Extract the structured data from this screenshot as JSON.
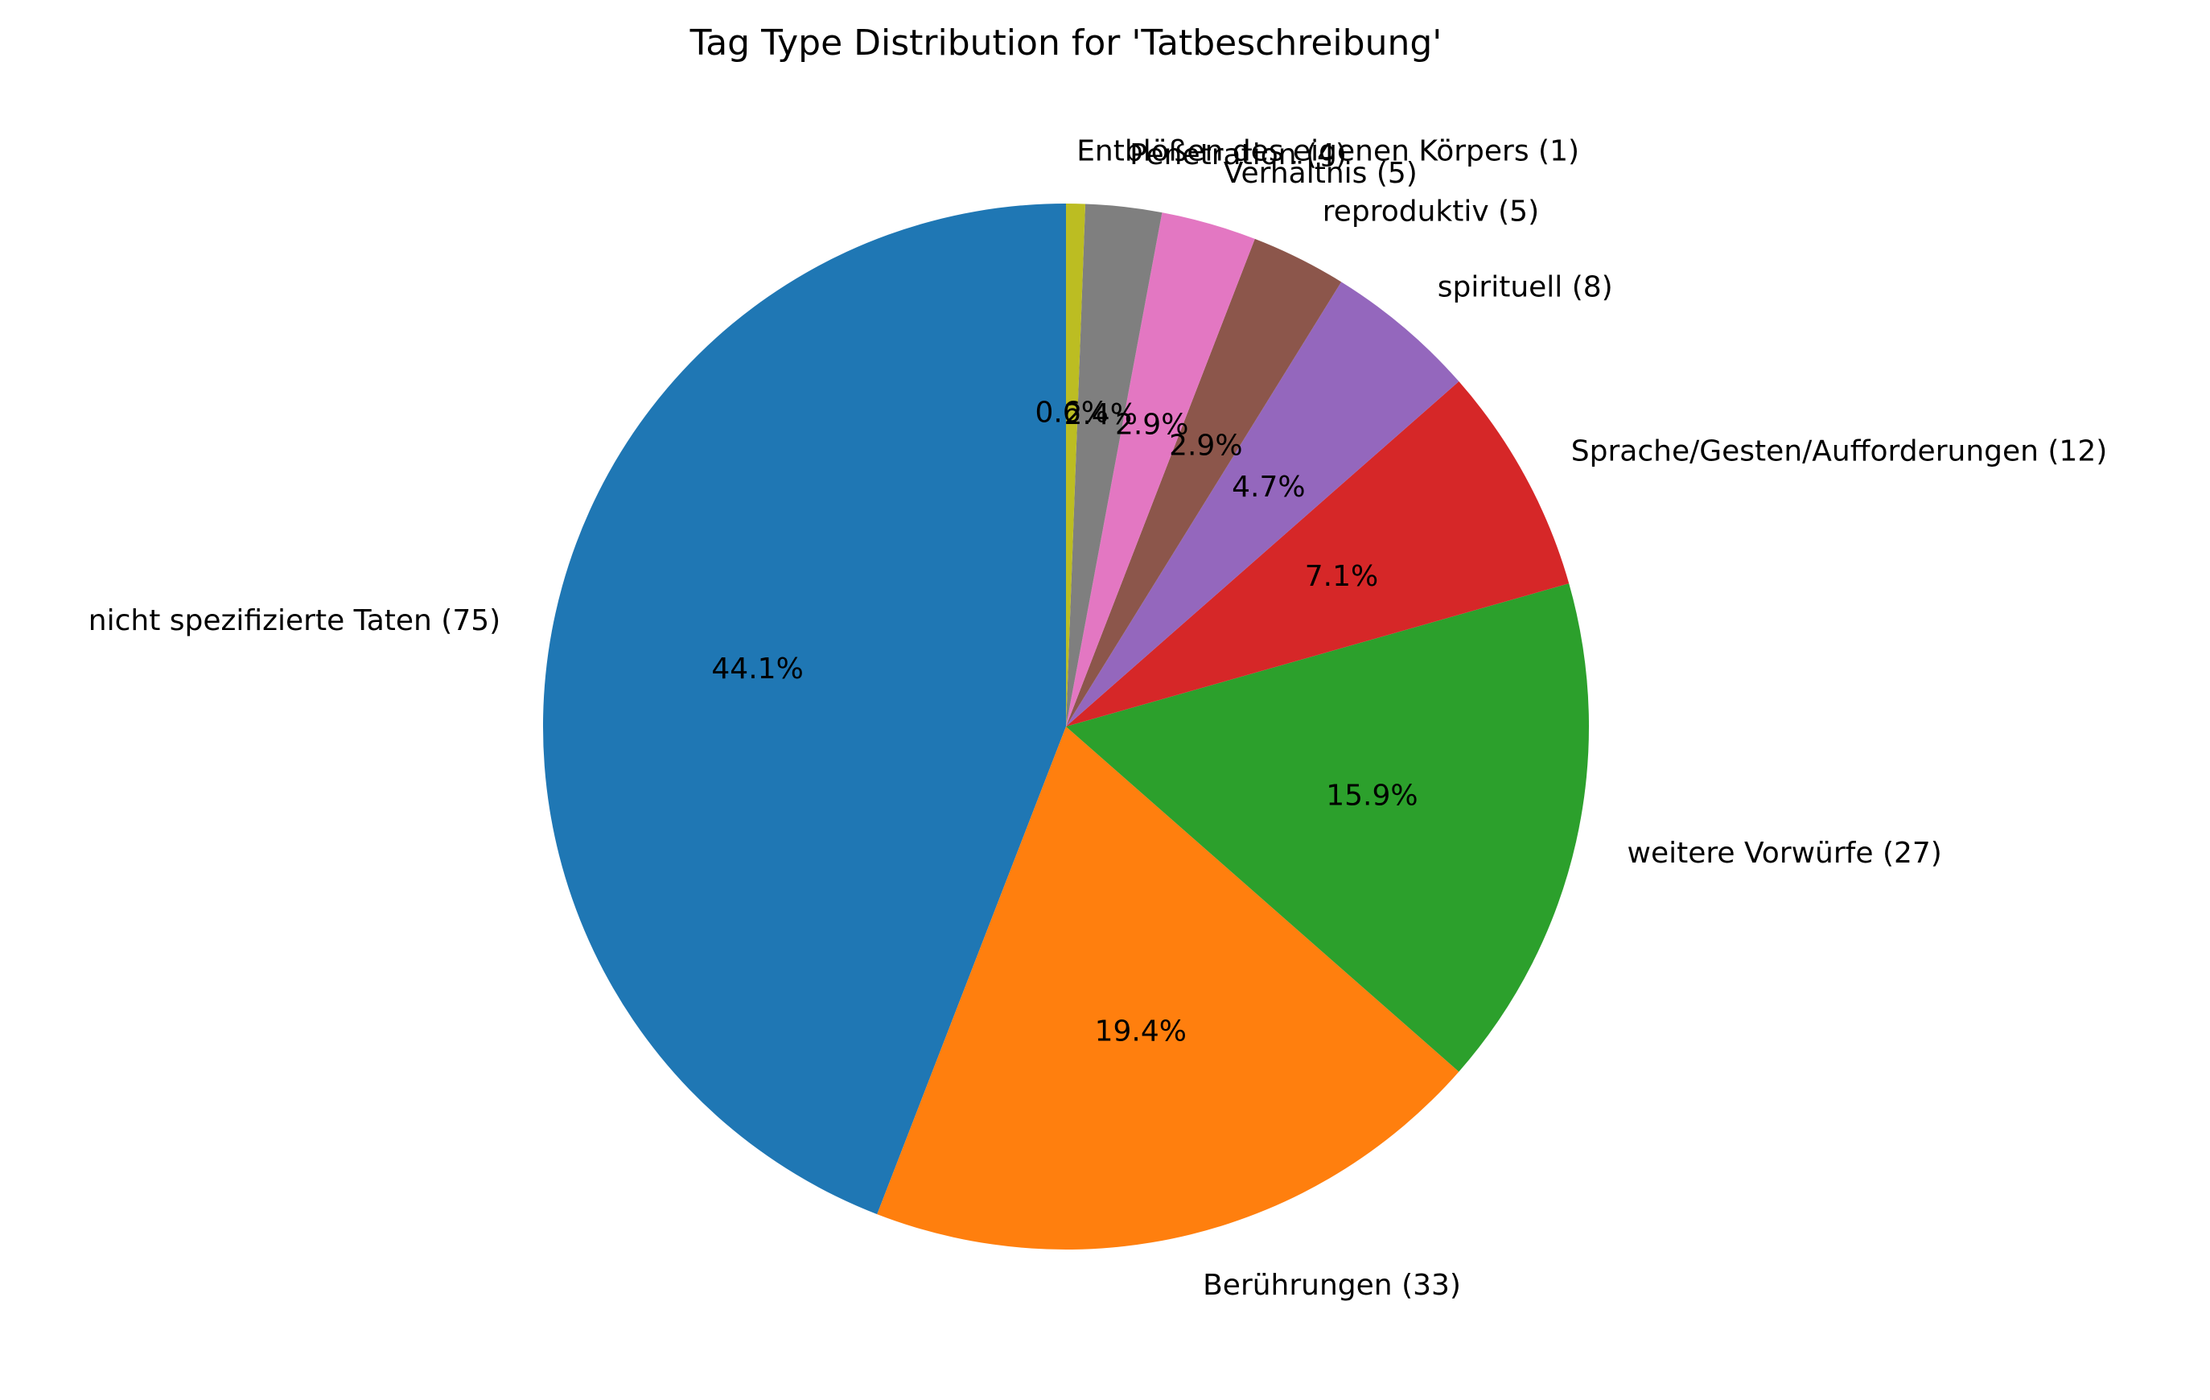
{
  "chart_data": {
    "type": "pie",
    "title": "Tag Type Distribution for 'Tatbeschreibung'",
    "start_angle_deg": 90,
    "direction": "counterclockwise",
    "slices": [
      {
        "label": "nicht spezifizierte Taten (75)",
        "value": 75,
        "pct_label": "44.1%",
        "color": "#1f77b4"
      },
      {
        "label": "Berührungen (33)",
        "value": 33,
        "pct_label": "19.4%",
        "color": "#ff7f0e"
      },
      {
        "label": "weitere Vorwürfe (27)",
        "value": 27,
        "pct_label": "15.9%",
        "color": "#2ca02c"
      },
      {
        "label": "Sprache/Gesten/Aufforderungen (12)",
        "value": 12,
        "pct_label": "7.1%",
        "color": "#d62728"
      },
      {
        "label": "spirituell (8)",
        "value": 8,
        "pct_label": "4.7%",
        "color": "#9467bd"
      },
      {
        "label": "reproduktiv (5)",
        "value": 5,
        "pct_label": "2.9%",
        "color": "#8c564b"
      },
      {
        "label": "Verhältnis (5)",
        "value": 5,
        "pct_label": "2.9%",
        "color": "#e377c2"
      },
      {
        "label": "Penetration (4)",
        "value": 4,
        "pct_label": "2.4%",
        "color": "#7f7f7f"
      },
      {
        "label": "Entblößen des eigenen Körpers (1)",
        "value": 1,
        "pct_label": "0.6%",
        "color": "#bcbd22"
      }
    ]
  }
}
